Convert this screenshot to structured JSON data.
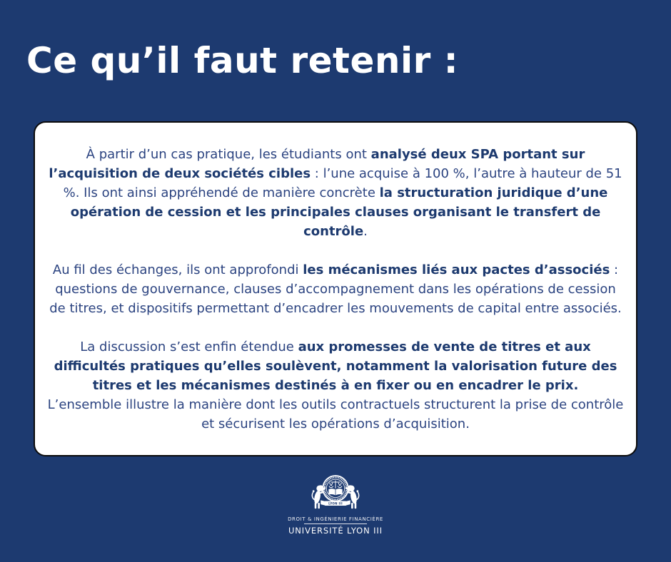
{
  "page": {
    "title": "Ce qu’il faut retenir :",
    "background_color": "#1d3a70",
    "card_background": "#ffffff",
    "card_border_color": "#0b0b0b",
    "text_color": "#2b4380",
    "bold_text_color": "#1d3a6f",
    "title_color": "#ffffff"
  },
  "card": {
    "paragraphs": [
      {
        "segments": [
          {
            "text": "À partir d’un cas pratique, les étudiants ont ",
            "bold": false
          },
          {
            "text": "analysé deux SPA portant sur l’acquisition de deux sociétés cibles",
            "bold": true
          },
          {
            "text": " : l’une acquise à 100 %, l’autre à hauteur de 51 %. Ils ont ainsi appréhendé de manière concrète ",
            "bold": false
          },
          {
            "text": "la structuration juridique d’une opération de cession et les principales clauses organisant le transfert de contrôle",
            "bold": true
          },
          {
            "text": ".",
            "bold": false
          }
        ]
      },
      {
        "segments": [
          {
            "text": "Au fil des échanges, ils ont approfondi ",
            "bold": false
          },
          {
            "text": "les mécanismes liés aux pactes d’associés",
            "bold": true
          },
          {
            "text": " : questions de gouvernance, clauses d’accompagnement dans les opérations de cession de titres, et dispositifs permettant d’encadrer les mouvements de capital entre associés.",
            "bold": false
          }
        ]
      },
      {
        "segments": [
          {
            "text": "La discussion s’est enfin étendue ",
            "bold": false
          },
          {
            "text": "aux promesses de vente de titres et aux difficultés pratiques qu’elles soulèvent, notamment la valorisation future des titres et les mécanismes destinés à en fixer ou en encadrer le prix.",
            "bold": true
          },
          {
            "text": "\nL’ensemble illustre la manière dont les outils contractuels structurent la prise de contrôle et sécurisent les opérations d’acquisition.",
            "bold": false
          }
        ]
      }
    ]
  },
  "logo": {
    "crest_banner": "LYON III",
    "department": "DROIT & INGÉNIERIE FINANCIÈRE",
    "university": "UNIVERSITÉ LYON III"
  }
}
